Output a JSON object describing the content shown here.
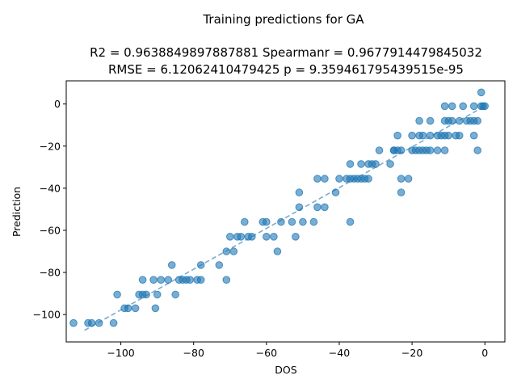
{
  "chart_data": {
    "type": "scatter",
    "title": "Training predictions for GA",
    "subtitle_line1": "R2 = 0.9638849897887881 Spearmanr = 0.9677914479845032",
    "subtitle_line2": "RMSE = 6.12062410479425 p = 9.359461795439515e-95",
    "xlabel": "DOS",
    "ylabel": "Prediction",
    "xlim": [
      -115,
      5.5
    ],
    "ylim": [
      -113,
      11
    ],
    "xticks": [
      -100,
      -80,
      -60,
      -40,
      -20,
      0
    ],
    "yticks": [
      -100,
      -80,
      -60,
      -40,
      -20,
      0
    ],
    "xtick_labels": [
      "−100",
      "−80",
      "−60",
      "−40",
      "−20",
      "0"
    ],
    "ytick_labels": [
      "−100",
      "−80",
      "−60",
      "−40",
      "−20",
      "0"
    ],
    "grid": false,
    "fit_line": {
      "x": [
        -110,
        0
      ],
      "y": [
        -107.5,
        -1
      ]
    },
    "points": [
      [
        -113,
        -104
      ],
      [
        -109,
        -104
      ],
      [
        -108,
        -104
      ],
      [
        -106,
        -104
      ],
      [
        -102,
        -104
      ],
      [
        -101,
        -90.5
      ],
      [
        -99,
        -97
      ],
      [
        -98,
        -97
      ],
      [
        -96,
        -97
      ],
      [
        -95,
        -90.5
      ],
      [
        -94,
        -90.5
      ],
      [
        -94,
        -83.5
      ],
      [
        -93,
        -90.5
      ],
      [
        -90.5,
        -97
      ],
      [
        -90,
        -90.5
      ],
      [
        -91,
        -83.5
      ],
      [
        -89,
        -83.5
      ],
      [
        -87,
        -83.5
      ],
      [
        -86,
        -76.5
      ],
      [
        -85,
        -90.5
      ],
      [
        -84,
        -83.5
      ],
      [
        -83,
        -83.5
      ],
      [
        -82,
        -83.5
      ],
      [
        -81,
        -83.5
      ],
      [
        -79,
        -83.5
      ],
      [
        -78,
        -83.5
      ],
      [
        -78,
        -76.5
      ],
      [
        -73,
        -76.5
      ],
      [
        -71,
        -83.5
      ],
      [
        -71,
        -70
      ],
      [
        -70,
        -63
      ],
      [
        -69,
        -70
      ],
      [
        -68,
        -63
      ],
      [
        -67,
        -63
      ],
      [
        -66,
        -56
      ],
      [
        -65,
        -63
      ],
      [
        -64,
        -63
      ],
      [
        -61,
        -56
      ],
      [
        -60,
        -63
      ],
      [
        -60,
        -56
      ],
      [
        -58,
        -63
      ],
      [
        -57,
        -70
      ],
      [
        -56,
        -56
      ],
      [
        -53,
        -56
      ],
      [
        -52,
        -63
      ],
      [
        -51,
        -49
      ],
      [
        -51,
        -42
      ],
      [
        -50,
        -56
      ],
      [
        -47,
        -56
      ],
      [
        -46,
        -49
      ],
      [
        -46,
        -35.5
      ],
      [
        -44,
        -49
      ],
      [
        -44,
        -35.5
      ],
      [
        -41,
        -42
      ],
      [
        -40,
        -35.5
      ],
      [
        -38,
        -35.5
      ],
      [
        -37,
        -56
      ],
      [
        -37,
        -28.5
      ],
      [
        -37,
        -35.5
      ],
      [
        -36,
        -35.5
      ],
      [
        -35,
        -35.5
      ],
      [
        -34,
        -35.5
      ],
      [
        -34,
        -28.5
      ],
      [
        -33,
        -35.5
      ],
      [
        -32,
        -35.5
      ],
      [
        -32,
        -28.5
      ],
      [
        -31,
        -28.5
      ],
      [
        -30,
        -28.5
      ],
      [
        -29,
        -22
      ],
      [
        -26,
        -28.5
      ],
      [
        -25,
        -22
      ],
      [
        -25,
        -22
      ],
      [
        -24,
        -22
      ],
      [
        -24,
        -15
      ],
      [
        -23,
        -35.5
      ],
      [
        -23,
        -42
      ],
      [
        -23,
        -22
      ],
      [
        -21,
        -35.5
      ],
      [
        -20,
        -22
      ],
      [
        -20,
        -15
      ],
      [
        -19,
        -22
      ],
      [
        -18,
        -22
      ],
      [
        -18,
        -15
      ],
      [
        -18,
        -8
      ],
      [
        -17,
        -22
      ],
      [
        -17,
        -15
      ],
      [
        -16,
        -22
      ],
      [
        -15,
        -22
      ],
      [
        -15,
        -15
      ],
      [
        -15,
        -8
      ],
      [
        -13,
        -22
      ],
      [
        -13,
        -15
      ],
      [
        -12,
        -15
      ],
      [
        -11,
        -22
      ],
      [
        -11,
        -15
      ],
      [
        -11,
        -8
      ],
      [
        -11,
        -1
      ],
      [
        -10,
        -8
      ],
      [
        -10,
        -15
      ],
      [
        -9,
        -8
      ],
      [
        -9,
        -1
      ],
      [
        -8,
        -15
      ],
      [
        -7,
        -8
      ],
      [
        -7,
        -15
      ],
      [
        -6,
        -1
      ],
      [
        -5,
        -8
      ],
      [
        -4,
        -8
      ],
      [
        -3,
        -15
      ],
      [
        -3,
        -8
      ],
      [
        -3,
        -1
      ],
      [
        -2,
        -8
      ],
      [
        -2,
        -22
      ],
      [
        -1,
        -1
      ],
      [
        -1,
        5.5
      ],
      [
        -0.5,
        -1
      ],
      [
        0,
        -1
      ]
    ]
  }
}
